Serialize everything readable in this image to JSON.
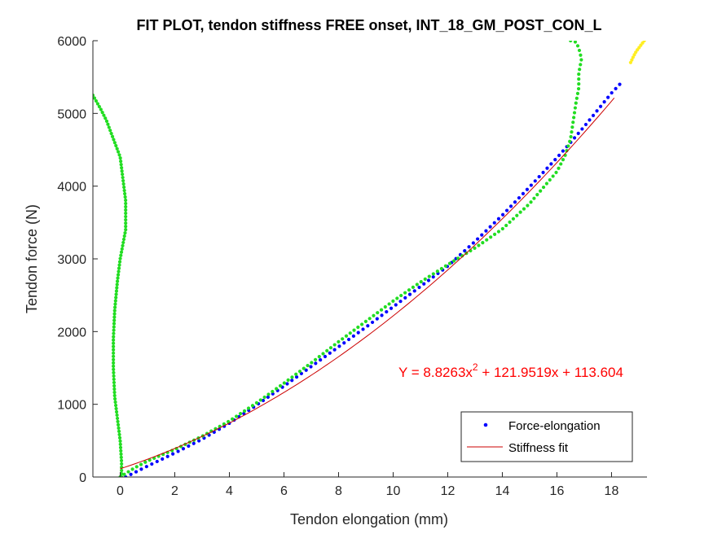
{
  "chart_data": {
    "type": "scatter",
    "title": "FIT PLOT, tendon stiffness FREE onset, INT_18_GM_POST_CON_L",
    "xlabel": "Tendon elongation (mm)",
    "ylabel": "Tendon force (N)",
    "xlim": [
      -1,
      19.3
    ],
    "ylim": [
      0,
      6000
    ],
    "xticks": [
      0,
      2,
      4,
      6,
      8,
      10,
      12,
      14,
      16,
      18
    ],
    "yticks": [
      0,
      1000,
      2000,
      3000,
      4000,
      5000,
      6000
    ],
    "grid": false,
    "legend": {
      "placement": "bottom-right",
      "entries": [
        "Force-elongation",
        "Stiffness fit"
      ]
    },
    "equation": {
      "prefix": "Y = 8.8263x",
      "sup": "2",
      "suffix": " + 121.9519x + 113.604"
    },
    "fit": {
      "a": 8.8263,
      "b": 121.9519,
      "c": 113.604,
      "x_start": 0,
      "x_end": 18.1,
      "color": "#cc0000"
    },
    "series": [
      {
        "name": "Force-elongation",
        "color": "#0000ff",
        "x": [
          0.2,
          1,
          2,
          3,
          4,
          5,
          6,
          7,
          8,
          9,
          10,
          11,
          12,
          13,
          14,
          15,
          16,
          16.5,
          17,
          17.5,
          18,
          18.3
        ],
        "y": [
          0,
          150,
          330,
          520,
          740,
          990,
          1250,
          1520,
          1790,
          2060,
          2340,
          2620,
          2900,
          3240,
          3600,
          3990,
          4390,
          4600,
          4820,
          5050,
          5280,
          5400
        ]
      },
      {
        "color": "#22dd22",
        "x": [
          -1,
          -0.7,
          -0.5,
          -0.3,
          -0.2,
          0,
          0.1,
          0.2,
          0.2,
          0.2,
          0.1,
          0,
          -0.1,
          -0.2,
          -0.25,
          -0.25,
          -0.2,
          -0.1,
          0,
          0.05,
          0.05
        ],
        "y": [
          5250,
          5050,
          4900,
          4700,
          4600,
          4400,
          4100,
          3800,
          3600,
          3400,
          3200,
          3000,
          2700,
          2300,
          1900,
          1500,
          1100,
          800,
          500,
          200,
          0
        ]
      },
      {
        "color": "#22dd22",
        "x": [
          0,
          0.5,
          1,
          2,
          3,
          4,
          5,
          6,
          7,
          8,
          9,
          10,
          11,
          12,
          13,
          14,
          15,
          16,
          16.3,
          16.5,
          16.6,
          16.7,
          16.8,
          16.8,
          16.9,
          16.8,
          16.7,
          16.5
        ],
        "y": [
          0,
          120,
          220,
          380,
          560,
          770,
          1020,
          1290,
          1570,
          1860,
          2140,
          2420,
          2680,
          2920,
          3150,
          3410,
          3760,
          4200,
          4420,
          4650,
          4900,
          5150,
          5350,
          5550,
          5750,
          5900,
          5980,
          6000
        ]
      },
      {
        "color": "#ffee22",
        "x": [
          18.7,
          18.8,
          18.9,
          19.0,
          19.1,
          19.2
        ],
        "y": [
          5700,
          5780,
          5850,
          5900,
          5950,
          6000
        ]
      }
    ]
  }
}
